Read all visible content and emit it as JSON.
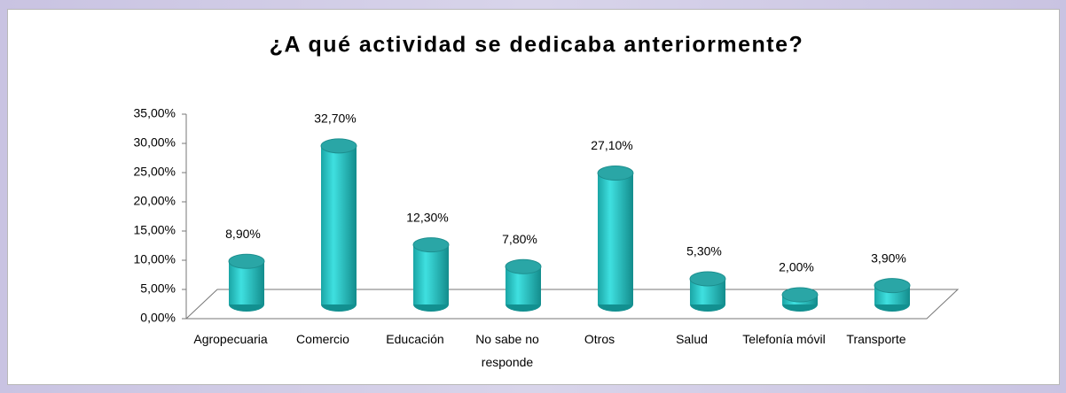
{
  "chart_data": {
    "type": "bar3d",
    "title": "¿A qué actividad se dedicaba anteriormente?",
    "categories": [
      "Agropecuaria",
      "Comercio",
      "Educación",
      "No sabe no responde",
      "Otros",
      "Salud",
      "Telefonía móvil",
      "Transporte"
    ],
    "values": [
      8.9,
      32.7,
      12.3,
      7.8,
      27.1,
      5.3,
      2.0,
      3.9
    ],
    "value_labels": [
      "8,90%",
      "32,70%",
      "12,30%",
      "7,80%",
      "27,10%",
      "5,30%",
      "2,00%",
      "3,90%"
    ],
    "color": "#2ec9c9",
    "ylim": [
      0,
      35
    ],
    "yticks": [
      {
        "value": 0,
        "label": "0,00%"
      },
      {
        "value": 5,
        "label": "5,00%"
      },
      {
        "value": 10,
        "label": "10,00%"
      },
      {
        "value": 15,
        "label": "15,00%"
      },
      {
        "value": 20,
        "label": "20,00%"
      },
      {
        "value": 25,
        "label": "25,00%"
      },
      {
        "value": 30,
        "label": "30,00%"
      },
      {
        "value": 35,
        "label": "35,00%"
      }
    ]
  }
}
